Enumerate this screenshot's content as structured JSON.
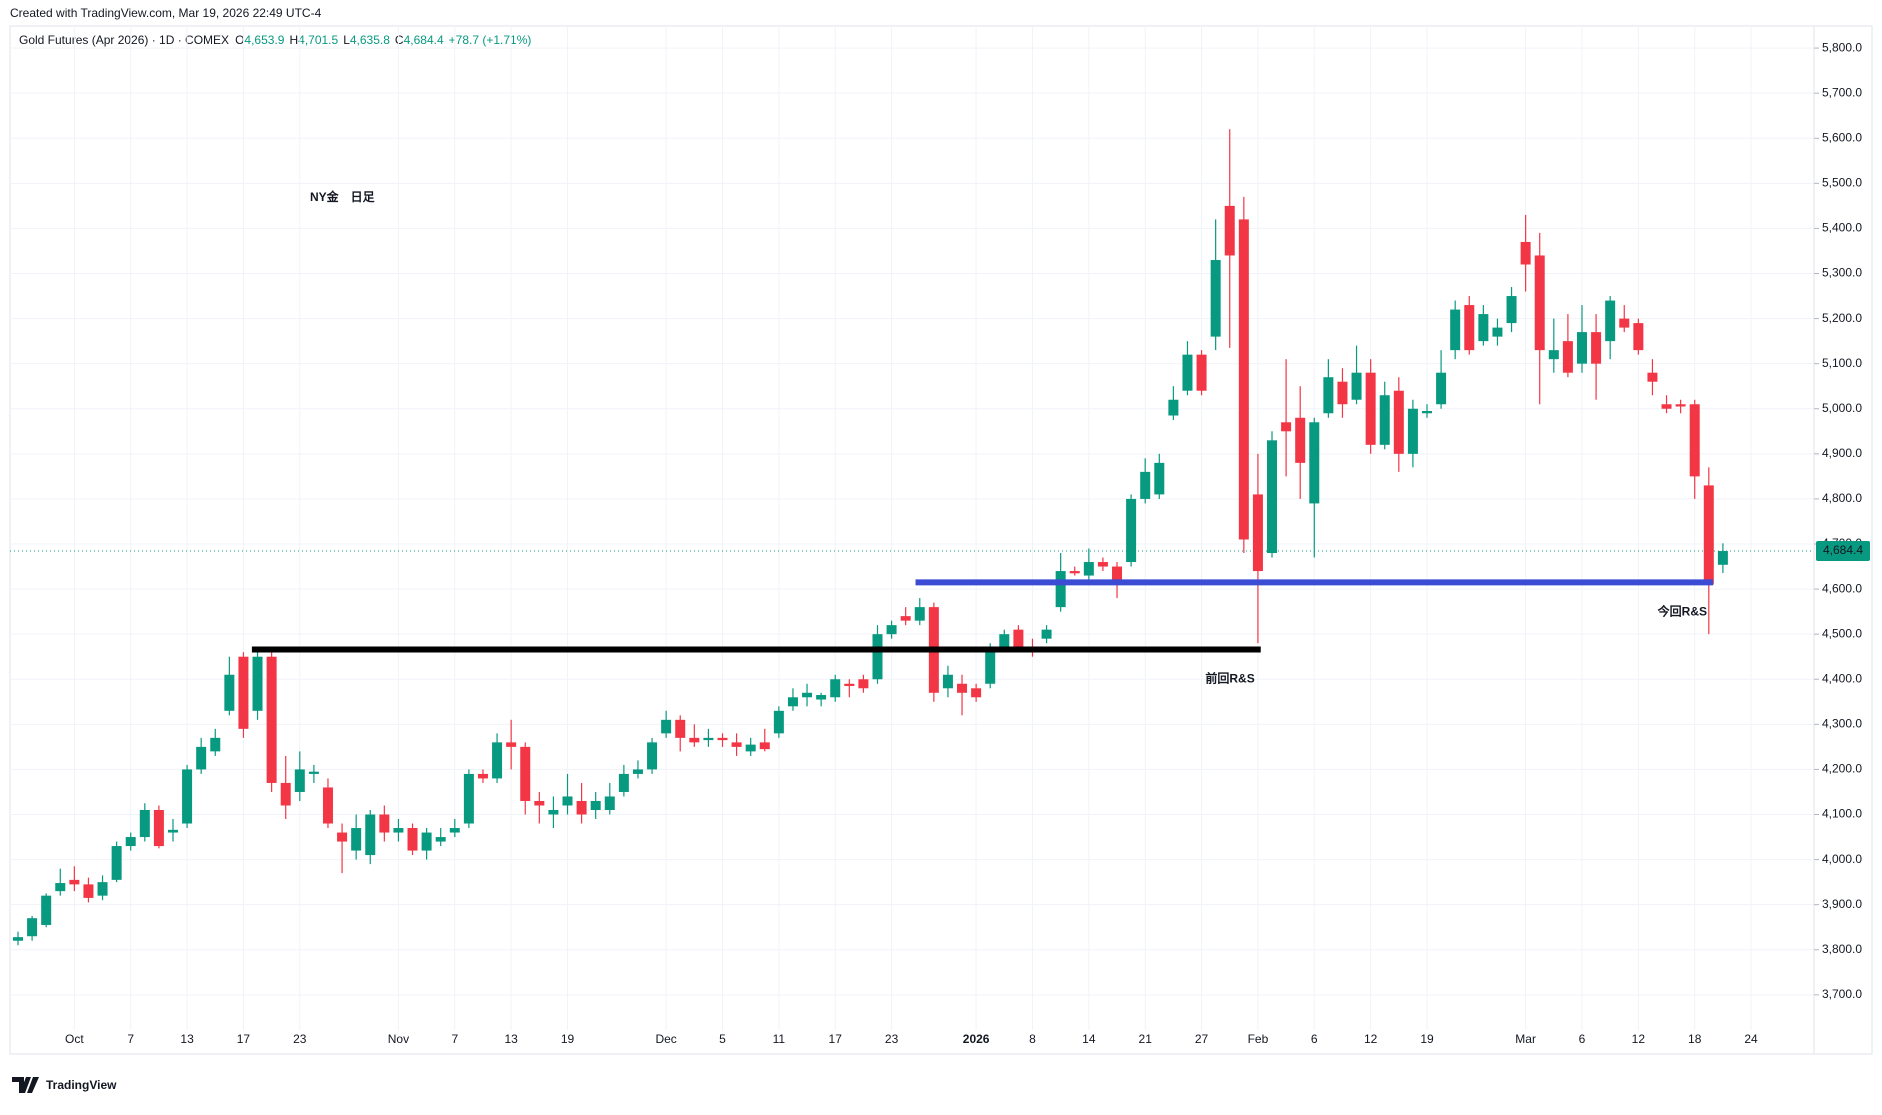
{
  "header": {
    "created": "Created with TradingView.com, Mar 19, 2026 22:49 UTC-4",
    "symbol": "Gold Futures (Apr 2026) · 1D · COMEX",
    "ohlc": [
      {
        "key": "O",
        "value": "4,653.9"
      },
      {
        "key": "H",
        "value": "4,701.5"
      },
      {
        "key": "L",
        "value": "4,635.8"
      },
      {
        "key": "C",
        "value": "4,684.4"
      }
    ],
    "change": "+78.7 (+1.71%)"
  },
  "footer": {
    "brand": "TradingView"
  },
  "chart_data": {
    "type": "candlestick",
    "title": "NY金　日足",
    "categories": [
      null,
      null,
      null,
      null,
      "Oct",
      null,
      null,
      null,
      "7",
      null,
      null,
      null,
      "13",
      null,
      null,
      null,
      "17",
      null,
      null,
      null,
      "23",
      null,
      null,
      null,
      null,
      null,
      null,
      "Nov",
      null,
      null,
      null,
      "7",
      null,
      null,
      null,
      "13",
      null,
      null,
      null,
      "19",
      null,
      null,
      null,
      null,
      null,
      null,
      "Dec",
      null,
      null,
      null,
      "5",
      null,
      null,
      null,
      "11",
      null,
      null,
      null,
      "17",
      null,
      null,
      null,
      "23",
      null,
      null,
      null,
      null,
      null,
      "2026",
      null,
      null,
      null,
      "8",
      null,
      null,
      null,
      "14",
      null,
      null,
      null,
      "21",
      null,
      null,
      null,
      "27",
      null,
      null,
      null,
      "Feb",
      null,
      null,
      null,
      "6",
      null,
      null,
      null,
      "12",
      null,
      null,
      null,
      "19",
      null,
      null,
      null,
      null,
      null,
      null,
      "Mar",
      null,
      null,
      null,
      "6",
      null,
      null,
      null,
      "12",
      null,
      null,
      null,
      "18",
      null,
      null,
      null,
      "24"
    ],
    "open": [
      3820,
      3830,
      3855,
      3930,
      3955,
      3945,
      3920,
      3955,
      4030,
      4050,
      4110,
      4060,
      4080,
      4200,
      4240,
      4330,
      4450,
      4330,
      4450,
      4170,
      4150,
      4190,
      4160,
      4060,
      4020,
      4010,
      4100,
      4060,
      4070,
      4020,
      4040,
      4060,
      4080,
      4190,
      4180,
      4260,
      4250,
      4130,
      4100,
      4120,
      4130,
      4110,
      4110,
      4150,
      4190,
      4200,
      4280,
      4310,
      4270,
      4265,
      4270,
      4260,
      4240,
      4260,
      4280,
      4340,
      4360,
      4355,
      4360,
      4390,
      4400,
      4400,
      4500,
      4540,
      4530,
      4560,
      4380,
      4390,
      4380,
      4390,
      4470,
      4510,
      4470,
      4490,
      4560,
      4640,
      4630,
      4660,
      4650,
      4660,
      4800,
      4810,
      4985,
      5040,
      5120,
      5160,
      5450,
      5420,
      4810,
      4680,
      4970,
      4980,
      4790,
      4990,
      5060,
      5020,
      5080,
      4920,
      5040,
      4900,
      4990,
      5010,
      5130,
      5230,
      5150,
      5160,
      5190,
      5370,
      5340,
      5110,
      5150,
      5100,
      5170,
      5150,
      5200,
      5190,
      5080,
      5010,
      5010,
      5010,
      4830,
      4653.9,
      null,
      null
    ],
    "high": [
      3840,
      3875,
      3925,
      3980,
      3985,
      3960,
      3965,
      4040,
      4060,
      4125,
      4120,
      4090,
      4210,
      4270,
      4290,
      4450,
      4460,
      4470,
      4470,
      4230,
      4240,
      4210,
      4180,
      4080,
      4100,
      4110,
      4120,
      4090,
      4080,
      4070,
      4070,
      4090,
      4200,
      4200,
      4280,
      4310,
      4260,
      4150,
      4140,
      4190,
      4170,
      4150,
      4170,
      4210,
      4220,
      4270,
      4330,
      4320,
      4300,
      4290,
      4280,
      4280,
      4270,
      4290,
      4340,
      4380,
      4390,
      4370,
      4410,
      4400,
      4410,
      4520,
      4530,
      4560,
      4580,
      4570,
      4430,
      4410,
      4390,
      4480,
      4510,
      4520,
      4490,
      4520,
      4680,
      4650,
      4690,
      4670,
      4660,
      4810,
      4890,
      4900,
      5050,
      5150,
      5130,
      5420,
      5620,
      5470,
      4900,
      4950,
      5110,
      5050,
      4980,
      5110,
      5090,
      5140,
      5110,
      5060,
      5070,
      5020,
      5010,
      5130,
      5240,
      5250,
      5230,
      5200,
      5270,
      5430,
      5390,
      5200,
      5210,
      5230,
      5210,
      5250,
      5230,
      5200,
      5110,
      5030,
      5020,
      5020,
      4870,
      4701.5,
      null,
      null
    ],
    "low": [
      3810,
      3820,
      3850,
      3920,
      3930,
      3905,
      3910,
      3950,
      4020,
      4040,
      4025,
      4040,
      4070,
      4190,
      4230,
      4320,
      4270,
      4310,
      4150,
      4090,
      4130,
      4170,
      4070,
      3970,
      4000,
      3990,
      4040,
      4040,
      4010,
      4000,
      4030,
      4050,
      4070,
      4170,
      4170,
      4200,
      4100,
      4080,
      4070,
      4100,
      4080,
      4090,
      4100,
      4140,
      4180,
      4190,
      4270,
      4240,
      4250,
      4250,
      4250,
      4230,
      4230,
      4240,
      4270,
      4330,
      4340,
      4340,
      4350,
      4360,
      4370,
      4390,
      4490,
      4520,
      4520,
      4350,
      4360,
      4320,
      4350,
      4380,
      4460,
      4460,
      4450,
      4480,
      4550,
      4630,
      4620,
      4640,
      4580,
      4650,
      4790,
      4800,
      4975,
      5030,
      5030,
      5130,
      5135,
      4680,
      4480,
      4670,
      4850,
      4800,
      4670,
      4980,
      4980,
      5010,
      4900,
      4910,
      4860,
      4870,
      4980,
      5000,
      5110,
      5120,
      5140,
      5140,
      5170,
      5260,
      5010,
      5080,
      5070,
      5080,
      5020,
      5110,
      5170,
      5120,
      5030,
      4990,
      4990,
      4800,
      4500,
      4635.8,
      null,
      null
    ],
    "close": [
      3828,
      3870,
      3920,
      3948,
      3945,
      3915,
      3950,
      4030,
      4050,
      4110,
      4030,
      4066,
      4200,
      4250,
      4270,
      4410,
      4290,
      4450,
      4170,
      4120,
      4200,
      4195,
      4080,
      4040,
      4070,
      4100,
      4060,
      4070,
      4020,
      4060,
      4050,
      4070,
      4190,
      4180,
      4260,
      4250,
      4130,
      4120,
      4110,
      4140,
      4100,
      4130,
      4140,
      4190,
      4200,
      4260,
      4310,
      4270,
      4260,
      4270,
      4265,
      4250,
      4255,
      4245,
      4330,
      4360,
      4370,
      4365,
      4400,
      4385,
      4380,
      4500,
      4520,
      4530,
      4560,
      4370,
      4410,
      4370,
      4360,
      4470,
      4500,
      4470,
      4460,
      4510,
      4640,
      4635,
      4660,
      4650,
      4620,
      4800,
      4860,
      4880,
      5020,
      5120,
      5040,
      5330,
      5340,
      4710,
      4640,
      4930,
      4950,
      4880,
      4970,
      5070,
      5010,
      5080,
      4920,
      5030,
      4900,
      5000,
      4995,
      5080,
      5220,
      5130,
      5210,
      5180,
      5250,
      5320,
      5130,
      5130,
      5080,
      5170,
      5100,
      5240,
      5180,
      5130,
      5060,
      5000,
      5005,
      4850,
      4610,
      4684.4,
      null,
      null
    ],
    "up_color": "#089981",
    "down_color": "#f23645",
    "ylim": [
      3622,
      5849
    ],
    "yticks": [
      {
        "value": 3700,
        "label": "3,700.0"
      },
      {
        "value": 3800,
        "label": "3,800.0"
      },
      {
        "value": 3900,
        "label": "3,900.0"
      },
      {
        "value": 4000,
        "label": "4,000.0"
      },
      {
        "value": 4100,
        "label": "4,100.0"
      },
      {
        "value": 4200,
        "label": "4,200.0"
      },
      {
        "value": 4300,
        "label": "4,300.0"
      },
      {
        "value": 4400,
        "label": "4,400.0"
      },
      {
        "value": 4500,
        "label": "4,500.0"
      },
      {
        "value": 4600,
        "label": "4,600.0"
      },
      {
        "value": 4700,
        "label": "4,700.0"
      },
      {
        "value": 4800,
        "label": "4,800.0"
      },
      {
        "value": 4900,
        "label": "4,900.0"
      },
      {
        "value": 5000,
        "label": "5,000.0"
      },
      {
        "value": 5100,
        "label": "5,100.0"
      },
      {
        "value": 5200,
        "label": "5,200.0"
      },
      {
        "value": 5300,
        "label": "5,300.0"
      },
      {
        "value": 5400,
        "label": "5,400.0"
      },
      {
        "value": 5500,
        "label": "5,500.0"
      },
      {
        "value": 5600,
        "label": "5,600.0"
      },
      {
        "value": 5700,
        "label": "5,700.0"
      },
      {
        "value": 5800,
        "label": "5,800.0"
      }
    ],
    "grid": true,
    "last_price": {
      "value": 4684.4,
      "label": "4,684.4"
    },
    "levels": [
      {
        "label": "前回R&S",
        "value": 4466,
        "color": "#000000"
      },
      {
        "label": "今回R&S",
        "value": 4615,
        "color": "#3b4bd4"
      }
    ]
  }
}
